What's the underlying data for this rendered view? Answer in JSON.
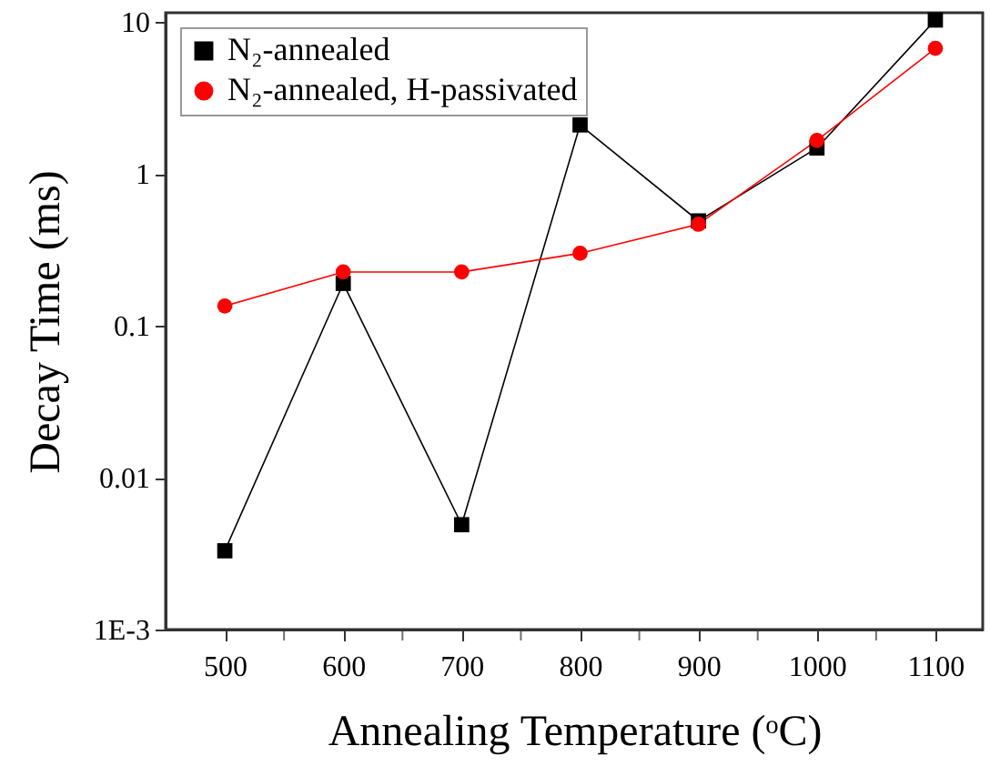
{
  "chart_data": {
    "type": "line",
    "xlabel": "Annealing Temperature (ᵒC)",
    "ylabel": "Decay Time (ms)",
    "x": [
      500,
      600,
      700,
      800,
      900,
      1000,
      1100
    ],
    "series": [
      {
        "name": "N₂-annealed",
        "color": "#000000",
        "marker": "square",
        "values": [
          0.0033,
          0.19,
          0.0049,
          2.1,
          0.49,
          1.48,
          10.3
        ]
      },
      {
        "name": "N₂-annealed, H-passivated",
        "color": "#ff0000",
        "marker": "circle",
        "values": [
          0.135,
          0.226,
          0.226,
          0.3,
          0.466,
          1.66,
          6.7
        ]
      }
    ],
    "log": "y",
    "xlim": [
      450,
      1140
    ],
    "ylim": [
      0.001,
      11.5
    ],
    "xticks": [
      500,
      {
        "value": 550,
        "label": null
      },
      600,
      {
        "value": 650,
        "label": null
      },
      700,
      {
        "value": 750,
        "label": null
      },
      800,
      {
        "value": 850,
        "label": null
      },
      900,
      {
        "value": 950,
        "label": null
      },
      1000,
      {
        "value": 1050,
        "label": null
      },
      1100
    ],
    "yticks": [
      {
        "value": 0.001,
        "label": "1E-3"
      },
      0.01,
      0.1,
      1,
      10
    ],
    "legend": "top left",
    "grid": false,
    "line_style": "solid"
  }
}
